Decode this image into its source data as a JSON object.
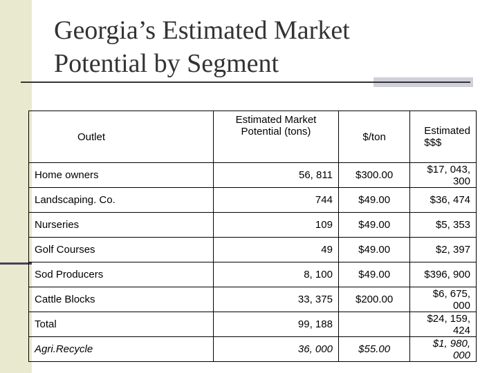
{
  "title": {
    "line1": "Georgia’s Estimated Market",
    "line2": "Potential by Segment"
  },
  "table": {
    "headers": [
      "Outlet",
      "Estimated Market Potential (tons)",
      "$/ton",
      "Estimated $$$"
    ],
    "rows": [
      [
        "Home owners",
        "56, 811",
        "$300.00",
        "$17, 043, 300"
      ],
      [
        "Landscaping. Co.",
        "744",
        "$49.00",
        "$36, 474"
      ],
      [
        "Nurseries",
        "109",
        "$49.00",
        "$5, 353"
      ],
      [
        "Golf Courses",
        "49",
        "$49.00",
        "$2, 397"
      ],
      [
        "Sod Producers",
        "8, 100",
        "$49.00",
        "$396, 900"
      ],
      [
        "Cattle Blocks",
        "33, 375",
        "$200.00",
        "$6, 675, 000"
      ],
      [
        "Total",
        "99, 188",
        "",
        "$24, 159, 424"
      ],
      [
        "Agri.Recycle",
        "36, 000",
        "$55.00",
        "$1, 980, 000"
      ]
    ]
  }
}
